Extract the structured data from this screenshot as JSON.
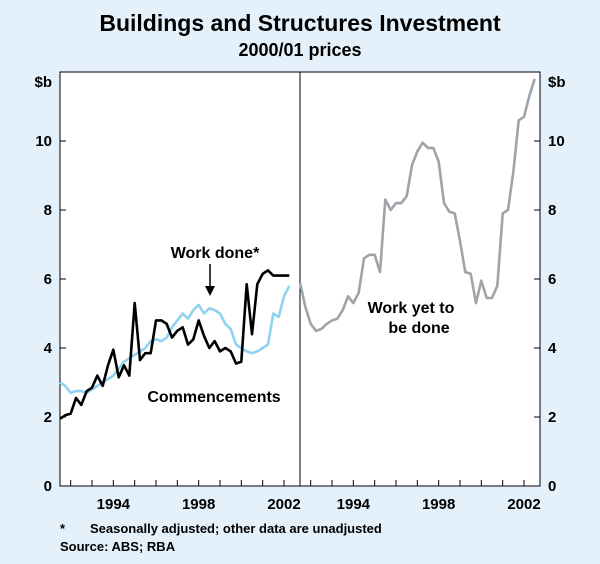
{
  "chart_data": {
    "type": "line",
    "title": "Buildings and Structures Investment",
    "subtitle": "2000/01 prices",
    "y_unit_left": "$b",
    "y_unit_right": "$b",
    "ylim": [
      0,
      12
    ],
    "yticks": [
      "0",
      "2",
      "4",
      "6",
      "8",
      "10"
    ],
    "panels": [
      {
        "name": "left",
        "xlim": [
          1991.5,
          2002.75
        ],
        "xticks": [
          {
            "value": 1994,
            "label": "1994"
          },
          {
            "value": 1998,
            "label": "1998"
          },
          {
            "value": 2002,
            "label": "2002"
          }
        ],
        "series": [
          {
            "name": "Work done*",
            "color": "#8fd3f0",
            "x": [
              1991.5,
              1991.75,
              1992,
              1992.25,
              1992.5,
              1992.75,
              1993,
              1993.25,
              1993.5,
              1993.75,
              1994,
              1994.25,
              1994.5,
              1994.75,
              1995,
              1995.25,
              1995.5,
              1995.75,
              1996,
              1996.25,
              1996.5,
              1996.75,
              1997,
              1997.25,
              1997.5,
              1997.75,
              1998,
              1998.25,
              1998.5,
              1998.75,
              1999,
              1999.25,
              1999.5,
              1999.75,
              2000,
              2000.25,
              2000.5,
              2000.75,
              2001,
              2001.25,
              2001.5,
              2001.75,
              2002,
              2002.25
            ],
            "values": [
              3.0,
              2.9,
              2.7,
              2.75,
              2.75,
              2.7,
              2.8,
              2.9,
              3.0,
              3.1,
              3.2,
              3.4,
              3.6,
              3.7,
              3.8,
              3.9,
              4.0,
              4.2,
              4.25,
              4.2,
              4.3,
              4.6,
              4.8,
              5.0,
              4.85,
              5.1,
              5.25,
              5.0,
              5.15,
              5.1,
              5.0,
              4.7,
              4.55,
              4.1,
              4.0,
              3.9,
              3.85,
              3.9,
              4.0,
              4.1,
              5.0,
              4.9,
              5.5,
              5.8
            ]
          },
          {
            "name": "Commencements",
            "color": "#000000",
            "x": [
              1991.5,
              1991.75,
              1992,
              1992.25,
              1992.5,
              1992.75,
              1993,
              1993.25,
              1993.5,
              1993.75,
              1994,
              1994.25,
              1994.5,
              1994.75,
              1995,
              1995.25,
              1995.5,
              1995.75,
              1996,
              1996.25,
              1996.5,
              1996.75,
              1997,
              1997.25,
              1997.5,
              1997.75,
              1998,
              1998.25,
              1998.5,
              1998.75,
              1999,
              1999.25,
              1999.5,
              1999.75,
              2000,
              2000.25,
              2000.5,
              2000.75,
              2001,
              2001.25,
              2001.5,
              2001.75,
              2002,
              2002.25
            ],
            "values": [
              1.95,
              2.05,
              2.1,
              2.55,
              2.35,
              2.75,
              2.85,
              3.2,
              2.9,
              3.5,
              3.95,
              3.15,
              3.5,
              3.2,
              5.3,
              3.65,
              3.85,
              3.85,
              4.8,
              4.8,
              4.7,
              4.3,
              4.5,
              4.6,
              4.1,
              4.25,
              4.8,
              4.35,
              4.0,
              4.2,
              3.9,
              4.0,
              3.9,
              3.55,
              3.6,
              5.85,
              4.4,
              5.85,
              6.15,
              6.25,
              6.1,
              6.1,
              6.1,
              6.1
            ]
          }
        ]
      },
      {
        "name": "right",
        "xlim": [
          1991.5,
          2002.75
        ],
        "xticks": [
          {
            "value": 1994,
            "label": "1994"
          },
          {
            "value": 1998,
            "label": "1998"
          },
          {
            "value": 2002,
            "label": "2002"
          }
        ],
        "series": [
          {
            "name": "Work yet to be done",
            "color": "#a0a4a8",
            "x": [
              1991.5,
              1991.75,
              1992,
              1992.25,
              1992.5,
              1992.75,
              1993,
              1993.25,
              1993.5,
              1993.75,
              1994,
              1994.25,
              1994.5,
              1994.75,
              1995,
              1995.25,
              1995.5,
              1995.75,
              1996,
              1996.25,
              1996.5,
              1996.75,
              1997,
              1997.25,
              1997.5,
              1997.75,
              1998,
              1998.25,
              1998.5,
              1998.75,
              1999,
              1999.25,
              1999.5,
              1999.75,
              2000,
              2000.25,
              2000.5,
              2000.75,
              2001,
              2001.25,
              2001.5,
              2001.75,
              2002,
              2002.25,
              2002.5
            ],
            "values": [
              5.9,
              5.2,
              4.7,
              4.5,
              4.55,
              4.7,
              4.8,
              4.85,
              5.1,
              5.5,
              5.3,
              5.6,
              6.6,
              6.7,
              6.7,
              6.2,
              8.3,
              8.0,
              8.2,
              8.2,
              8.4,
              9.3,
              9.7,
              9.95,
              9.8,
              9.8,
              9.4,
              8.2,
              7.95,
              7.9,
              7.1,
              6.2,
              6.15,
              5.3,
              5.95,
              5.45,
              5.45,
              5.8,
              7.9,
              8.0,
              9.1,
              10.6,
              10.7,
              11.3,
              11.8
            ]
          }
        ]
      }
    ],
    "annotations": {
      "work_done": "Work done*",
      "commencements": "Commencements",
      "yet_line1": "Work yet to",
      "yet_line2": "be done"
    }
  },
  "footnotes": {
    "star": "*",
    "note": "Seasonally adjusted; other data are unadjusted",
    "source": "Source: ABS; RBA"
  }
}
